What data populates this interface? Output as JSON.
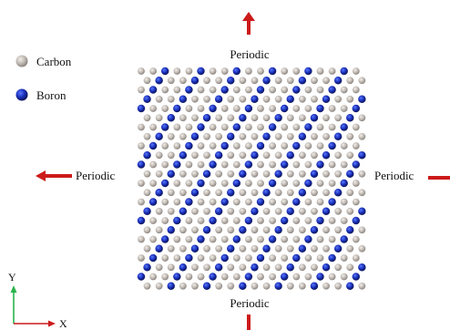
{
  "legend": {
    "items": [
      {
        "label": "Carbon",
        "color": "#b3aca6",
        "icon": "gray-sphere-icon"
      },
      {
        "label": "Boron",
        "color": "#14289e",
        "icon": "blue-sphere-icon"
      }
    ]
  },
  "boundaries": {
    "top": "Periodic",
    "bottom": "Periodic",
    "left": "Periodic",
    "right": "Periodic",
    "arrow_color": "#cc1a1a"
  },
  "axes": {
    "y_label": "Y",
    "x_label": "X",
    "y_color": "#2bb24c",
    "x_color": "#cc1a1a"
  },
  "lattice": {
    "rows": 24,
    "cols": 19,
    "boron_pattern": "every third atom along each row, shifted per row"
  }
}
